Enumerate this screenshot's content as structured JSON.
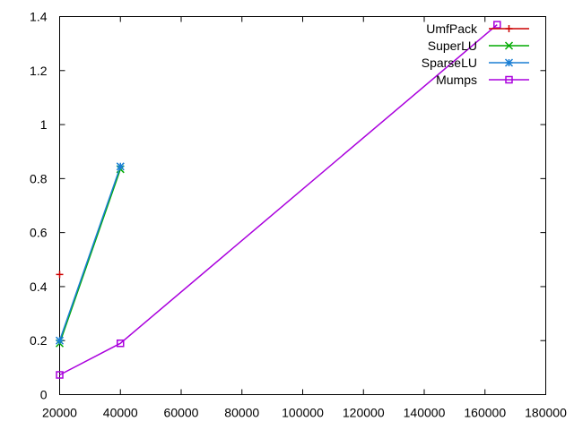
{
  "chart_data": {
    "type": "line",
    "title": "",
    "xlabel": "",
    "ylabel": "",
    "xlim": [
      20000,
      180000
    ],
    "ylim": [
      0,
      1.4
    ],
    "x_ticks": [
      20000,
      40000,
      60000,
      80000,
      100000,
      120000,
      140000,
      160000,
      180000
    ],
    "y_ticks": [
      0,
      0.2,
      0.4,
      0.6,
      0.8,
      1,
      1.2,
      1.4
    ],
    "x_tick_labels": [
      "20000",
      "40000",
      "60000",
      "80000",
      "100000",
      "120000",
      "140000",
      "160000",
      "180000"
    ],
    "y_tick_labels": [
      "0",
      "0.2",
      "0.4",
      "0.6",
      "0.8",
      "1",
      "1.2",
      "1.4"
    ],
    "grid": false,
    "legend_position": "top-right",
    "series": [
      {
        "name": "UmfPack",
        "color": "#cc0000",
        "marker": "plus",
        "x": [
          20000
        ],
        "y": [
          0.445
        ]
      },
      {
        "name": "SuperLU",
        "color": "#00aa00",
        "marker": "cross",
        "x": [
          20000,
          40000
        ],
        "y": [
          0.19,
          0.835
        ]
      },
      {
        "name": "SparseLU",
        "color": "#1a7fd4",
        "marker": "star",
        "x": [
          20000,
          40000
        ],
        "y": [
          0.2,
          0.845
        ]
      },
      {
        "name": "Mumps",
        "color": "#aa00dd",
        "marker": "square",
        "x": [
          20000,
          40000,
          164000
        ],
        "y": [
          0.073,
          0.19,
          1.37
        ]
      }
    ]
  }
}
